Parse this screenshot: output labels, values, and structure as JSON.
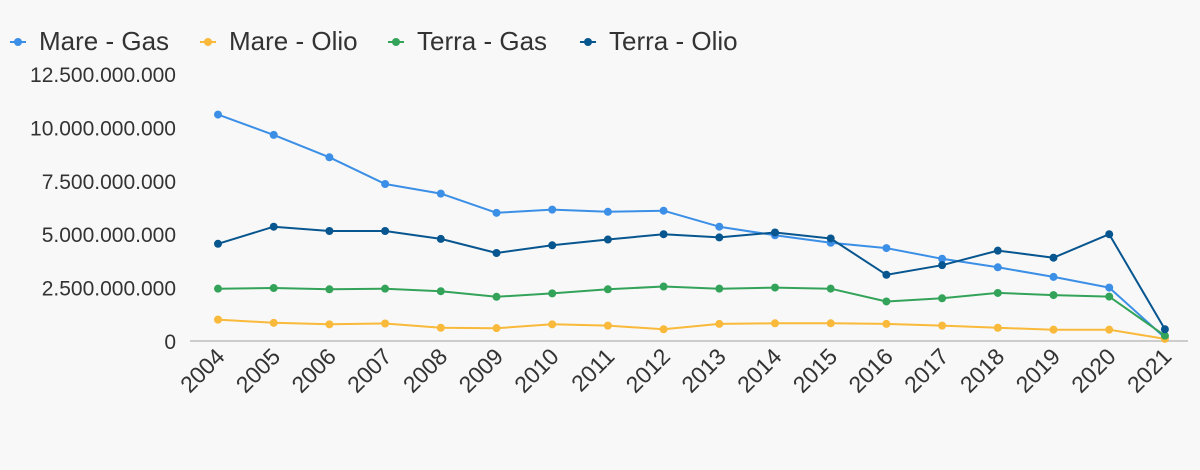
{
  "chart_data": {
    "type": "line",
    "title": "",
    "xlabel": "",
    "ylabel": "",
    "categories": [
      "2004",
      "2005",
      "2006",
      "2007",
      "2008",
      "2009",
      "2010",
      "2011",
      "2012",
      "2013",
      "2014",
      "2015",
      "2016",
      "2017",
      "2018",
      "2019",
      "2020",
      "2021"
    ],
    "ylim": [
      0,
      12500000000
    ],
    "yticks": [
      0,
      2500000000,
      5000000000,
      7500000000,
      10000000000,
      12500000000
    ],
    "ytick_labels": [
      "0",
      "2.500.000.000",
      "5.000.000.000",
      "7.500.000.000",
      "10.000.000.000",
      "12.500.000.000"
    ],
    "grid": false,
    "legend_position": "top-left",
    "series": [
      {
        "name": "Mare - Gas",
        "color": "#3b8fe6",
        "values": [
          10600000000,
          9650000000,
          8600000000,
          7350000000,
          6900000000,
          6000000000,
          6150000000,
          6050000000,
          6100000000,
          5350000000,
          4950000000,
          4600000000,
          4350000000,
          3850000000,
          3450000000,
          3000000000,
          2500000000,
          150000000
        ]
      },
      {
        "name": "Mare - Olio",
        "color": "#f9b93a",
        "values": [
          1000000000,
          850000000,
          780000000,
          820000000,
          620000000,
          600000000,
          780000000,
          720000000,
          550000000,
          800000000,
          830000000,
          830000000,
          800000000,
          720000000,
          620000000,
          530000000,
          530000000,
          100000000
        ]
      },
      {
        "name": "Terra - Gas",
        "color": "#34a35a",
        "values": [
          2450000000,
          2480000000,
          2420000000,
          2450000000,
          2330000000,
          2070000000,
          2230000000,
          2420000000,
          2550000000,
          2450000000,
          2500000000,
          2450000000,
          1850000000,
          2000000000,
          2250000000,
          2150000000,
          2080000000,
          250000000
        ]
      },
      {
        "name": "Terra - Olio",
        "color": "#08568f",
        "values": [
          4550000000,
          5350000000,
          5150000000,
          5150000000,
          4780000000,
          4120000000,
          4480000000,
          4750000000,
          5000000000,
          4850000000,
          5080000000,
          4800000000,
          3100000000,
          3550000000,
          4230000000,
          3900000000,
          5000000000,
          550000000
        ]
      }
    ]
  }
}
